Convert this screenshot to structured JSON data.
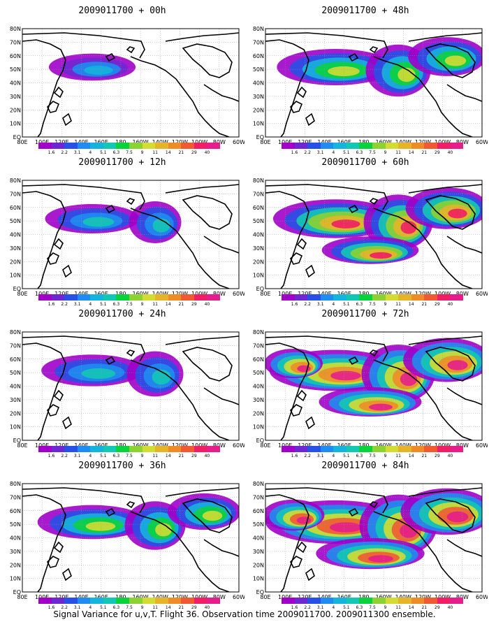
{
  "footer_caption": "Signal Variance for u,v,T. Flight 36. Observation time 2009011700. 2009011300 ensemble.",
  "map": {
    "lat_labels": [
      "80N",
      "70N",
      "60N",
      "50N",
      "40N",
      "30N",
      "20N",
      "10N",
      "EQ"
    ],
    "lon_labels": [
      "80E",
      "100E",
      "120E",
      "140E",
      "160E",
      "180",
      "160W",
      "140W",
      "120W",
      "100W",
      "80W",
      "60W"
    ]
  },
  "colorbar": {
    "labels": [
      "1.6",
      "2.2",
      "3.1",
      "4",
      "5.1",
      "6.3",
      "7.5",
      "9",
      "11",
      "14",
      "21",
      "29",
      "40"
    ],
    "colors": [
      "#a000c8",
      "#6e28d2",
      "#2850e6",
      "#1e8cf0",
      "#14b4dc",
      "#12c8b4",
      "#0ad23c",
      "#8cd232",
      "#d2dc32",
      "#e6b428",
      "#ee8c28",
      "#f05a32",
      "#f01e64",
      "#e61e8c"
    ]
  },
  "panels": [
    {
      "title": "2009011700 + 00h",
      "col": 0,
      "row": 0,
      "field_intensity": 0.15
    },
    {
      "title": "2009011700 + 48h",
      "col": 1,
      "row": 0,
      "field_intensity": 0.55
    },
    {
      "title": "2009011700 + 12h",
      "col": 0,
      "row": 1,
      "field_intensity": 0.25
    },
    {
      "title": "2009011700 + 60h",
      "col": 1,
      "row": 1,
      "field_intensity": 0.65
    },
    {
      "title": "2009011700 + 24h",
      "col": 0,
      "row": 2,
      "field_intensity": 0.35
    },
    {
      "title": "2009011700 + 72h",
      "col": 1,
      "row": 2,
      "field_intensity": 0.75
    },
    {
      "title": "2009011700 + 36h",
      "col": 0,
      "row": 3,
      "field_intensity": 0.45
    },
    {
      "title": "2009011700 + 84h",
      "col": 1,
      "row": 3,
      "field_intensity": 0.85
    }
  ]
}
